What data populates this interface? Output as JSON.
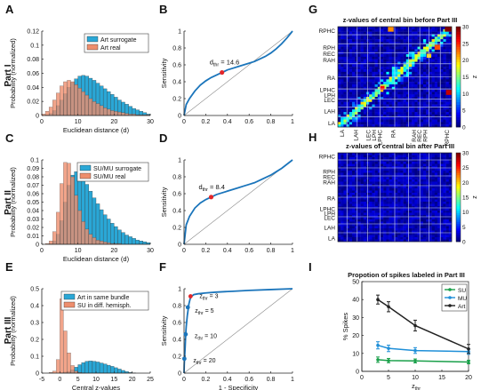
{
  "figure": {
    "panel_letters": [
      "A",
      "B",
      "C",
      "D",
      "E",
      "F",
      "G",
      "H",
      "I"
    ],
    "part_labels": [
      "Part I",
      "Part II",
      "Part III"
    ]
  },
  "colors": {
    "blue": "#2aa7d6",
    "orange": "#ee8e6d",
    "curve": "#1b75bb",
    "red_point": "#e3262a",
    "diag": "#888888"
  },
  "chart_data": [
    {
      "id": "A",
      "type": "bar",
      "title": "",
      "xlabel": "Euclidean distance (d)",
      "ylabel": "Probability (normalized)",
      "xlim": [
        0,
        30
      ],
      "ylim": [
        0,
        0.12
      ],
      "xticks": [
        0,
        10,
        20,
        30
      ],
      "yticks": [
        0,
        0.02,
        0.04,
        0.06,
        0.08,
        0.1,
        0.12
      ],
      "ytick_labels": [
        "0",
        "0.02",
        "0.04",
        "0.06",
        "0.08",
        "0.1",
        "0.12"
      ],
      "bin_width": 1,
      "series": [
        {
          "name": "Art surrogate",
          "color": "#2aa7d6",
          "values": [
            0,
            0.001,
            0.003,
            0.007,
            0.014,
            0.022,
            0.031,
            0.04,
            0.047,
            0.052,
            0.056,
            0.057,
            0.056,
            0.053,
            0.05,
            0.046,
            0.042,
            0.038,
            0.034,
            0.03,
            0.026,
            0.022,
            0.019,
            0.016,
            0.013,
            0.01,
            0.008,
            0.006,
            0.004,
            0.002
          ]
        },
        {
          "name": "Art real",
          "color": "#ee8e6d",
          "values": [
            0.002,
            0.006,
            0.012,
            0.022,
            0.032,
            0.042,
            0.048,
            0.05,
            0.048,
            0.044,
            0.039,
            0.034,
            0.029,
            0.024,
            0.02,
            0.017,
            0.014,
            0.011,
            0.009,
            0.007,
            0.006,
            0.005,
            0.004,
            0.003,
            0.002,
            0.002,
            0.001,
            0.001,
            0.001,
            0.001
          ]
        }
      ],
      "legend": "top-right"
    },
    {
      "id": "B",
      "type": "line",
      "xlabel": "",
      "ylabel": "Sensitivity",
      "xlim": [
        0,
        1
      ],
      "ylim": [
        0,
        1
      ],
      "xticks": [
        0,
        0.2,
        0.4,
        0.6,
        0.8,
        1
      ],
      "yticks": [
        0,
        0.2,
        0.4,
        0.6,
        0.8,
        1
      ],
      "xtick_labels": [
        "0",
        "0.2",
        "0.4",
        "0.6",
        "0.8",
        "1"
      ],
      "ytick_labels": [
        "0",
        "0.2",
        "0.4",
        "0.6",
        "0.8",
        "1"
      ],
      "x": [
        0,
        0.02,
        0.05,
        0.1,
        0.15,
        0.2,
        0.25,
        0.3,
        0.35,
        0.4,
        0.45,
        0.5,
        0.55,
        0.6,
        0.65,
        0.7,
        0.75,
        0.8,
        0.85,
        0.9,
        0.95,
        1.0
      ],
      "y": [
        0,
        0.13,
        0.2,
        0.29,
        0.36,
        0.41,
        0.45,
        0.48,
        0.51,
        0.54,
        0.56,
        0.58,
        0.6,
        0.62,
        0.64,
        0.67,
        0.7,
        0.74,
        0.79,
        0.85,
        0.92,
        1.0
      ],
      "point": {
        "x": 0.35,
        "y": 0.51,
        "label_sub": "thr",
        "label_pre": "d",
        "label_post": " = 14.6"
      }
    },
    {
      "id": "C",
      "type": "bar",
      "xlabel": "Euclidean distance (d)",
      "ylabel": "Probability (normalized)",
      "xlim": [
        0,
        30
      ],
      "ylim": [
        0,
        0.1
      ],
      "xticks": [
        0,
        10,
        20,
        30
      ],
      "yticks": [
        0,
        0.01,
        0.02,
        0.03,
        0.04,
        0.05,
        0.06,
        0.07,
        0.08,
        0.09,
        0.1
      ],
      "ytick_labels": [
        "0",
        "0.01",
        "0.02",
        "0.03",
        "0.04",
        "0.05",
        "0.06",
        "0.07",
        "0.08",
        "0.09",
        "0.1"
      ],
      "bin_width": 1,
      "series": [
        {
          "name": "SU/MU surrogate",
          "color": "#2aa7d6",
          "values": [
            0,
            0,
            0.001,
            0.004,
            0.012,
            0.028,
            0.05,
            0.07,
            0.082,
            0.086,
            0.084,
            0.078,
            0.071,
            0.063,
            0.055,
            0.048,
            0.041,
            0.035,
            0.03,
            0.025,
            0.021,
            0.017,
            0.014,
            0.011,
            0.009,
            0.007,
            0.005,
            0.004,
            0.003,
            0.002
          ]
        },
        {
          "name": "SU/MU real",
          "color": "#ee8e6d",
          "values": [
            0,
            0.001,
            0.004,
            0.015,
            0.038,
            0.072,
            0.097,
            0.096,
            0.08,
            0.058,
            0.04,
            0.027,
            0.018,
            0.012,
            0.008,
            0.005,
            0.004,
            0.003,
            0.002,
            0.001,
            0.001,
            0.001,
            0,
            0,
            0,
            0,
            0,
            0,
            0,
            0
          ]
        }
      ],
      "legend": "top-right"
    },
    {
      "id": "D",
      "type": "line",
      "xlabel": "",
      "ylabel": "Sensitivity",
      "xlim": [
        0,
        1
      ],
      "ylim": [
        0,
        1
      ],
      "xticks": [
        0,
        0.2,
        0.4,
        0.6,
        0.8,
        1
      ],
      "yticks": [
        0,
        0.2,
        0.4,
        0.6,
        0.8,
        1
      ],
      "xtick_labels": [
        "0",
        "0.2",
        "0.4",
        "0.6",
        "0.8",
        "1"
      ],
      "ytick_labels": [
        "0",
        "0.2",
        "0.4",
        "0.6",
        "0.8",
        "1"
      ],
      "x": [
        0,
        0.02,
        0.05,
        0.1,
        0.15,
        0.2,
        0.25,
        0.3,
        0.35,
        0.4,
        0.45,
        0.5,
        0.55,
        0.6,
        0.65,
        0.7,
        0.75,
        0.8,
        0.85,
        0.9,
        0.95,
        1.0
      ],
      "y": [
        0,
        0.23,
        0.33,
        0.43,
        0.49,
        0.53,
        0.56,
        0.59,
        0.61,
        0.63,
        0.65,
        0.67,
        0.69,
        0.71,
        0.73,
        0.76,
        0.79,
        0.82,
        0.86,
        0.9,
        0.95,
        1.0
      ],
      "point": {
        "x": 0.25,
        "y": 0.56,
        "label_sub": "thr",
        "label_pre": "d",
        "label_post": " = 8.4"
      }
    },
    {
      "id": "E",
      "type": "bar",
      "xlabel": "Central z-values",
      "ylabel": "Probability (normalized)",
      "xlim": [
        -5,
        25
      ],
      "ylim": [
        0,
        0.5
      ],
      "xticks": [
        -5,
        0,
        5,
        10,
        15,
        20,
        25
      ],
      "yticks": [
        0,
        0.1,
        0.2,
        0.3,
        0.4,
        0.5
      ],
      "ytick_labels": [
        "0",
        "0.1",
        "0.2",
        "0.3",
        "0.4",
        "0.5"
      ],
      "bin_width": 1,
      "bin_start": -5,
      "series": [
        {
          "name": "Art in same bundle",
          "color": "#2aa7d6",
          "values": [
            0,
            0,
            0,
            0,
            0,
            0.002,
            0.006,
            0.01,
            0.02,
            0.035,
            0.05,
            0.062,
            0.07,
            0.072,
            0.07,
            0.066,
            0.06,
            0.054,
            0.047,
            0.04,
            0.032,
            0.024,
            0.016,
            0.009,
            0.004,
            0.001,
            0,
            0,
            0,
            0
          ]
        },
        {
          "name": "SU in diff. hemisph.",
          "color": "#ee8e6d",
          "values": [
            0,
            0,
            0.004,
            0.012,
            0.08,
            0.44,
            0.25,
            0.12,
            0.045,
            0.012,
            0.004,
            0.001,
            0,
            0,
            0,
            0,
            0,
            0,
            0,
            0,
            0,
            0,
            0,
            0,
            0,
            0,
            0,
            0,
            0,
            0
          ]
        }
      ],
      "legend": "top-right"
    },
    {
      "id": "F",
      "type": "line",
      "xlabel": "1 - Specificity",
      "ylabel": "Sensitivity",
      "xlim": [
        0,
        1
      ],
      "ylim": [
        0,
        1
      ],
      "xticks": [
        0,
        0.2,
        0.4,
        0.6,
        0.8,
        1
      ],
      "yticks": [
        0,
        0.2,
        0.4,
        0.6,
        0.8,
        1
      ],
      "xtick_labels": [
        "0",
        "0.2",
        "0.4",
        "0.6",
        "0.8",
        "1"
      ],
      "ytick_labels": [
        "0",
        "0.2",
        "0.4",
        "0.6",
        "0.8",
        "1"
      ],
      "x": [
        0,
        0.002,
        0.005,
        0.01,
        0.015,
        0.02,
        0.03,
        0.045,
        0.06,
        0.09,
        0.13,
        0.2,
        0.3,
        0.45,
        0.6,
        0.8,
        1.0
      ],
      "y": [
        0,
        0.1,
        0.18,
        0.3,
        0.45,
        0.55,
        0.68,
        0.82,
        0.9,
        0.93,
        0.94,
        0.95,
        0.96,
        0.97,
        0.98,
        0.99,
        1.0
      ],
      "points": [
        {
          "x": 0.06,
          "y": 0.91,
          "color": "#e3262a",
          "label": "z",
          "sub": "thr",
          "post": " = 3"
        },
        {
          "x": 0.035,
          "y": 0.78,
          "color": "#1b75bb",
          "label": "z",
          "sub": "thr",
          "post": " = 5"
        },
        {
          "x": 0.015,
          "y": 0.46,
          "color": "#1b75bb",
          "label": "z",
          "sub": "thr",
          "post": " = 10"
        },
        {
          "x": 0.003,
          "y": 0.17,
          "color": "#1b75bb",
          "label": "z",
          "sub": "thr",
          "post": " = 20"
        }
      ]
    },
    {
      "id": "G",
      "type": "heatmap",
      "title": "z-values of central bin before Part III",
      "row_labels": [
        "RPHC",
        "RPH",
        "REC",
        "RAH",
        "RA",
        "LPHC",
        "LPH",
        "LEC",
        "LAH",
        "LA"
      ],
      "col_labels": [
        "LA",
        "LAH",
        "LEC",
        "LPH",
        "LPHC",
        "RA",
        "RAH",
        "REC",
        "RPH",
        "RPHC"
      ],
      "colorbar": {
        "label": "z",
        "min": 0,
        "max": 30,
        "ticks": [
          0,
          5,
          10,
          15,
          20,
          25,
          30
        ]
      }
    },
    {
      "id": "H",
      "type": "heatmap",
      "title": "z-values of central bin after Part III",
      "row_labels": [
        "RPHC",
        "RPH",
        "REC",
        "RAH",
        "RA",
        "LPHC",
        "LPH",
        "LEC",
        "LAH",
        "LA"
      ],
      "col_labels": [
        "LA",
        "LAH",
        "LEC",
        "LPH",
        "LPHC",
        "RA",
        "RAH",
        "REC",
        "RPH",
        "RPHC"
      ],
      "colorbar": {
        "label": "z",
        "min": 0,
        "max": 30,
        "ticks": [
          0,
          5,
          10,
          15,
          20,
          25,
          30
        ]
      }
    },
    {
      "id": "I",
      "type": "line",
      "title": "Propotion of spikes labeled in Part III",
      "xlabel": "z",
      "xlabel_sub": "thr",
      "ylabel": "% Spikes",
      "xlim": [
        0,
        20
      ],
      "ylim": [
        0,
        50
      ],
      "xticks": [
        0,
        5,
        10,
        15,
        20
      ],
      "yticks": [
        0,
        10,
        20,
        30,
        40,
        50
      ],
      "series": [
        {
          "name": "SU",
          "color": "#1aa04a",
          "x": [
            3,
            5,
            10,
            20
          ],
          "y": [
            6.5,
            6,
            5.8,
            5.2
          ],
          "err": [
            1.5,
            1.2,
            1.1,
            1.0
          ]
        },
        {
          "name": "MU",
          "color": "#1f8fd8",
          "x": [
            3,
            5,
            10,
            20
          ],
          "y": [
            14.5,
            12.8,
            11.6,
            11.0
          ],
          "err": [
            2,
            1.8,
            1.6,
            1.5
          ]
        },
        {
          "name": "Art",
          "color": "#222222",
          "x": [
            3,
            5,
            10,
            20
          ],
          "y": [
            40,
            36,
            25.5,
            12.5
          ],
          "err": [
            2.5,
            2.8,
            3,
            2.5
          ]
        }
      ],
      "legend": "top-right"
    }
  ]
}
